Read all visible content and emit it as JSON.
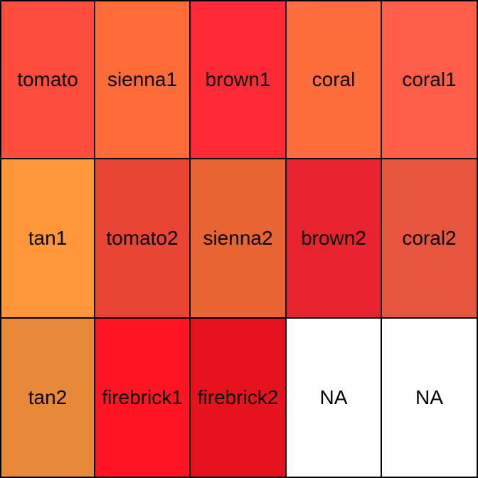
{
  "chart_data": {
    "type": "table",
    "title": "",
    "columns": 5,
    "rows": 3,
    "cells": [
      {
        "label": "tomato",
        "color": "#FF4D3D"
      },
      {
        "label": "sienna1",
        "color": "#FF6B36"
      },
      {
        "label": "brown1",
        "color": "#FF2A36"
      },
      {
        "label": "coral",
        "color": "#FF6D3D"
      },
      {
        "label": "coral1",
        "color": "#FF5E48"
      },
      {
        "label": "tan1",
        "color": "#FF963A"
      },
      {
        "label": "tomato2",
        "color": "#E84534"
      },
      {
        "label": "sienna2",
        "color": "#E86531"
      },
      {
        "label": "brown2",
        "color": "#E6232F"
      },
      {
        "label": "coral2",
        "color": "#E8553F"
      },
      {
        "label": "tan2",
        "color": "#E8893A"
      },
      {
        "label": "firebrick1",
        "color": "#FF1424"
      },
      {
        "label": "firebrick2",
        "color": "#E6131F"
      },
      {
        "label": "NA",
        "color": "#FFFFFF"
      },
      {
        "label": "NA",
        "color": "#FFFFFF"
      }
    ]
  }
}
